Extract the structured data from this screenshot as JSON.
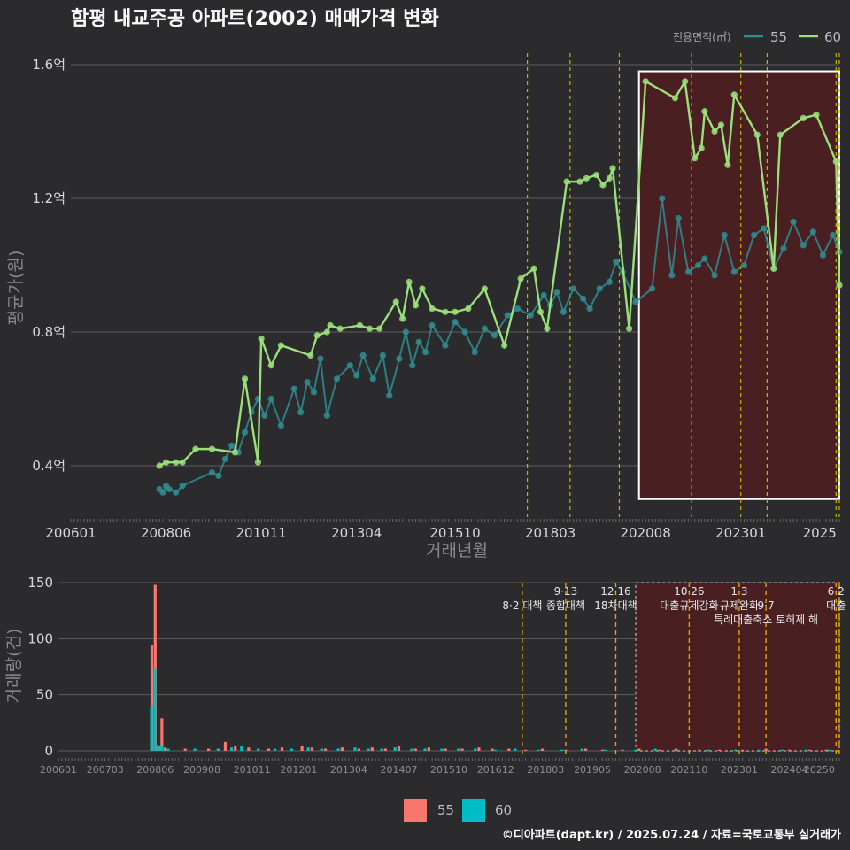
{
  "title": "함평 내교주공 아파트(2002) 매매가격 변화",
  "credit": "©디아파트(dapt.kr) / 2025.07.24 / 자료=국토교통부 실거래가",
  "colors": {
    "background": "#2b2b2d",
    "s55": "#2f8d92",
    "s60": "#9be07a",
    "bar55": "#f8766d",
    "bar60": "#00bfc4",
    "policy_line": "#c8b400",
    "policy_line_bottom": "#e2a400",
    "highlight_fill": "#4a1f22",
    "highlight_border": "#ffffff"
  },
  "top_legend": {
    "title": "전용면적(㎡)",
    "items": [
      {
        "label": "55",
        "color": "#2f8d92"
      },
      {
        "label": "60",
        "color": "#9be07a"
      }
    ]
  },
  "bottom_legend": {
    "items": [
      {
        "label": "55",
        "color": "#f8766d"
      },
      {
        "label": "60",
        "color": "#00bfc4"
      }
    ]
  },
  "chart_data": [
    {
      "type": "line",
      "ylabel": "평균가(원)",
      "xlabel": "거래년월",
      "x_ticks": [
        "200601",
        "200806",
        "201011",
        "201304",
        "201510",
        "201803",
        "202008",
        "202301",
        "2025"
      ],
      "y_ticks": [
        "0.4억",
        "0.8억",
        "1.2억",
        "1.6억"
      ],
      "x_range": [
        "2006-01",
        "2025-07"
      ],
      "ylim": [
        0.3,
        1.6
      ],
      "y_unit": "억",
      "policy_dates": [
        "2017-08",
        "2018-09",
        "2019-12",
        "2021-10",
        "2023-01",
        "2023-09",
        "2025-06",
        "2025-07"
      ],
      "highlight": {
        "x_range": [
          "2020-06",
          "2025-07"
        ],
        "y_range": [
          0.3,
          1.58
        ]
      },
      "series": [
        {
          "name": "60",
          "color": "#9be07a",
          "points": [
            [
              "2008-04",
              0.4
            ],
            [
              "2008-06",
              0.41
            ],
            [
              "2008-09",
              0.41
            ],
            [
              "2008-11",
              0.41
            ],
            [
              "2009-03",
              0.45
            ],
            [
              "2009-08",
              0.45
            ],
            [
              "2010-03",
              0.44
            ],
            [
              "2010-06",
              0.66
            ],
            [
              "2010-10",
              0.41
            ],
            [
              "2010-11",
              0.78
            ],
            [
              "2011-02",
              0.7
            ],
            [
              "2011-05",
              0.76
            ],
            [
              "2012-02",
              0.73
            ],
            [
              "2012-04",
              0.79
            ],
            [
              "2012-07",
              0.8
            ],
            [
              "2012-08",
              0.82
            ],
            [
              "2012-11",
              0.81
            ],
            [
              "2013-05",
              0.82
            ],
            [
              "2013-08",
              0.81
            ],
            [
              "2013-11",
              0.81
            ],
            [
              "2014-04",
              0.89
            ],
            [
              "2014-06",
              0.84
            ],
            [
              "2014-08",
              0.95
            ],
            [
              "2014-10",
              0.88
            ],
            [
              "2014-12",
              0.93
            ],
            [
              "2015-03",
              0.87
            ],
            [
              "2015-07",
              0.86
            ],
            [
              "2015-10",
              0.86
            ],
            [
              "2016-02",
              0.87
            ],
            [
              "2016-07",
              0.93
            ],
            [
              "2017-01",
              0.76
            ],
            [
              "2017-06",
              0.96
            ],
            [
              "2017-10",
              0.99
            ],
            [
              "2017-12",
              0.86
            ],
            [
              "2018-02",
              0.81
            ],
            [
              "2018-08",
              1.25
            ],
            [
              "2018-12",
              1.25
            ],
            [
              "2019-02",
              1.26
            ],
            [
              "2019-05",
              1.27
            ],
            [
              "2019-07",
              1.24
            ],
            [
              "2019-09",
              1.26
            ],
            [
              "2019-10",
              1.29
            ],
            [
              "2020-03",
              0.81
            ],
            [
              "2020-08",
              1.55
            ],
            [
              "2021-05",
              1.5
            ],
            [
              "2021-08",
              1.55
            ],
            [
              "2021-11",
              1.32
            ],
            [
              "2022-01",
              1.35
            ],
            [
              "2022-02",
              1.46
            ],
            [
              "2022-05",
              1.4
            ],
            [
              "2022-07",
              1.42
            ],
            [
              "2022-09",
              1.3
            ],
            [
              "2022-11",
              1.51
            ],
            [
              "2023-06",
              1.39
            ],
            [
              "2023-11",
              0.99
            ],
            [
              "2024-01",
              1.39
            ],
            [
              "2024-08",
              1.44
            ],
            [
              "2024-12",
              1.45
            ],
            [
              "2025-06",
              1.31
            ],
            [
              "2025-07",
              0.94
            ]
          ]
        },
        {
          "name": "55",
          "color": "#2f8d92",
          "points": [
            [
              "2008-04",
              0.33
            ],
            [
              "2008-05",
              0.32
            ],
            [
              "2008-06",
              0.34
            ],
            [
              "2008-07",
              0.33
            ],
            [
              "2008-09",
              0.32
            ],
            [
              "2008-11",
              0.34
            ],
            [
              "2009-08",
              0.38
            ],
            [
              "2009-10",
              0.37
            ],
            [
              "2009-12",
              0.42
            ],
            [
              "2010-02",
              0.46
            ],
            [
              "2010-04",
              0.44
            ],
            [
              "2010-06",
              0.5
            ],
            [
              "2010-08",
              0.56
            ],
            [
              "2010-10",
              0.6
            ],
            [
              "2010-12",
              0.55
            ],
            [
              "2011-02",
              0.6
            ],
            [
              "2011-05",
              0.52
            ],
            [
              "2011-09",
              0.63
            ],
            [
              "2011-11",
              0.56
            ],
            [
              "2012-01",
              0.65
            ],
            [
              "2012-03",
              0.62
            ],
            [
              "2012-05",
              0.72
            ],
            [
              "2012-07",
              0.55
            ],
            [
              "2012-10",
              0.66
            ],
            [
              "2013-02",
              0.7
            ],
            [
              "2013-04",
              0.67
            ],
            [
              "2013-06",
              0.73
            ],
            [
              "2013-09",
              0.66
            ],
            [
              "2013-12",
              0.73
            ],
            [
              "2014-02",
              0.61
            ],
            [
              "2014-05",
              0.72
            ],
            [
              "2014-07",
              0.8
            ],
            [
              "2014-09",
              0.7
            ],
            [
              "2014-11",
              0.77
            ],
            [
              "2015-01",
              0.74
            ],
            [
              "2015-03",
              0.82
            ],
            [
              "2015-07",
              0.76
            ],
            [
              "2015-10",
              0.83
            ],
            [
              "2016-01",
              0.8
            ],
            [
              "2016-04",
              0.74
            ],
            [
              "2016-07",
              0.81
            ],
            [
              "2016-10",
              0.79
            ],
            [
              "2017-02",
              0.85
            ],
            [
              "2017-05",
              0.87
            ],
            [
              "2017-09",
              0.85
            ],
            [
              "2018-01",
              0.91
            ],
            [
              "2018-03",
              0.88
            ],
            [
              "2018-05",
              0.92
            ],
            [
              "2018-07",
              0.86
            ],
            [
              "2018-10",
              0.93
            ],
            [
              "2019-01",
              0.9
            ],
            [
              "2019-03",
              0.87
            ],
            [
              "2019-06",
              0.93
            ],
            [
              "2019-09",
              0.95
            ],
            [
              "2019-11",
              1.01
            ],
            [
              "2020-01",
              0.98
            ],
            [
              "2020-05",
              0.89
            ],
            [
              "2020-10",
              0.93
            ],
            [
              "2021-01",
              1.2
            ],
            [
              "2021-04",
              0.97
            ],
            [
              "2021-06",
              1.14
            ],
            [
              "2021-09",
              0.98
            ],
            [
              "2021-12",
              1.0
            ],
            [
              "2022-02",
              1.02
            ],
            [
              "2022-05",
              0.97
            ],
            [
              "2022-08",
              1.09
            ],
            [
              "2022-11",
              0.98
            ],
            [
              "2023-02",
              1.0
            ],
            [
              "2023-05",
              1.09
            ],
            [
              "2023-08",
              1.11
            ],
            [
              "2023-11",
              0.99
            ],
            [
              "2024-02",
              1.05
            ],
            [
              "2024-05",
              1.13
            ],
            [
              "2024-08",
              1.06
            ],
            [
              "2024-11",
              1.1
            ],
            [
              "2025-02",
              1.03
            ],
            [
              "2025-05",
              1.09
            ],
            [
              "2025-07",
              1.04
            ]
          ]
        }
      ]
    },
    {
      "type": "bar",
      "ylabel": "거래량(건)",
      "x_ticks": [
        "200601",
        "200703",
        "200806",
        "200908",
        "201011",
        "201201",
        "201304",
        "201407",
        "201510",
        "201612",
        "201803",
        "201905",
        "202008",
        "202110",
        "202301",
        "202404",
        "20250"
      ],
      "y_ticks": [
        "0",
        "50",
        "100",
        "150"
      ],
      "ylim": [
        0,
        150
      ],
      "x_range": [
        "2006-01",
        "2025-07"
      ],
      "annotations": [
        {
          "date": "2017-08",
          "text": "8·2 대책",
          "row": 1
        },
        {
          "date": "2018-09",
          "text": "9·13",
          "row": 0
        },
        {
          "date": "2018-09",
          "text": "종합대책",
          "row": 1
        },
        {
          "date": "2019-12",
          "text": "12·16",
          "row": 0
        },
        {
          "date": "2019-12",
          "text": "18차대책",
          "row": 1
        },
        {
          "date": "2021-10",
          "text": "10·26",
          "row": 0
        },
        {
          "date": "2021-10",
          "text": "대출규제강화",
          "row": 1
        },
        {
          "date": "2023-01",
          "text": "1·3",
          "row": 0
        },
        {
          "date": "2023-01",
          "text": "규제완화",
          "row": 1
        },
        {
          "date": "2023-09",
          "text": "9·7",
          "row": 1
        },
        {
          "date": "2023-09",
          "text": "특례대출축소 토허제 해",
          "row": 2
        },
        {
          "date": "2025-06",
          "text": "6·2",
          "row": 0
        },
        {
          "date": "2025-06",
          "text": "대출",
          "row": 1
        }
      ],
      "series": [
        {
          "name": "55",
          "color": "#f8766d",
          "values": [
            [
              "2008-05",
              94
            ],
            [
              "2008-06",
              148
            ],
            [
              "2008-07",
              5
            ],
            [
              "2008-08",
              29
            ],
            [
              "2008-09",
              3
            ],
            [
              "2009-03",
              2
            ],
            [
              "2009-10",
              2
            ],
            [
              "2010-03",
              8
            ],
            [
              "2010-06",
              4
            ],
            [
              "2010-10",
              3
            ],
            [
              "2011-04",
              2
            ],
            [
              "2011-08",
              3
            ],
            [
              "2012-02",
              4
            ],
            [
              "2012-05",
              3
            ],
            [
              "2012-09",
              2
            ],
            [
              "2013-02",
              3
            ],
            [
              "2013-07",
              2
            ],
            [
              "2013-11",
              3
            ],
            [
              "2014-03",
              2
            ],
            [
              "2014-07",
              4
            ],
            [
              "2014-12",
              2
            ],
            [
              "2015-04",
              3
            ],
            [
              "2015-09",
              2
            ],
            [
              "2016-02",
              2
            ],
            [
              "2016-07",
              3
            ],
            [
              "2016-11",
              2
            ],
            [
              "2017-04",
              2
            ],
            [
              "2017-09",
              1
            ],
            [
              "2018-02",
              2
            ],
            [
              "2018-09",
              1
            ],
            [
              "2019-03",
              2
            ],
            [
              "2019-08",
              1
            ],
            [
              "2020-02",
              1
            ],
            [
              "2020-07",
              2
            ],
            [
              "2021-01",
              1
            ],
            [
              "2021-06",
              2
            ],
            [
              "2022-01",
              1
            ],
            [
              "2022-07",
              1
            ],
            [
              "2023-02",
              1
            ],
            [
              "2023-09",
              2
            ],
            [
              "2024-04",
              1
            ],
            [
              "2024-10",
              1
            ],
            [
              "2025-03",
              1
            ]
          ]
        },
        {
          "name": "60",
          "color": "#00bfc4",
          "values": [
            [
              "2008-05",
              40
            ],
            [
              "2008-06",
              73
            ],
            [
              "2008-07",
              5
            ],
            [
              "2008-08",
              4
            ],
            [
              "2008-10",
              2
            ],
            [
              "2009-06",
              2
            ],
            [
              "2010-01",
              2
            ],
            [
              "2010-05",
              3
            ],
            [
              "2010-08",
              4
            ],
            [
              "2011-01",
              2
            ],
            [
              "2011-06",
              2
            ],
            [
              "2011-11",
              2
            ],
            [
              "2012-04",
              3
            ],
            [
              "2012-08",
              2
            ],
            [
              "2013-01",
              2
            ],
            [
              "2013-06",
              3
            ],
            [
              "2013-10",
              2
            ],
            [
              "2014-02",
              2
            ],
            [
              "2014-06",
              3
            ],
            [
              "2014-11",
              2
            ],
            [
              "2015-03",
              2
            ],
            [
              "2015-08",
              2
            ],
            [
              "2016-01",
              2
            ],
            [
              "2016-06",
              2
            ],
            [
              "2016-12",
              1
            ],
            [
              "2017-06",
              2
            ],
            [
              "2018-01",
              1
            ],
            [
              "2018-08",
              1
            ],
            [
              "2019-02",
              2
            ],
            [
              "2019-09",
              1
            ],
            [
              "2020-06",
              1
            ],
            [
              "2020-12",
              2
            ],
            [
              "2021-07",
              1
            ],
            [
              "2022-04",
              1
            ],
            [
              "2022-12",
              1
            ],
            [
              "2023-07",
              1
            ],
            [
              "2024-02",
              1
            ],
            [
              "2024-09",
              1
            ],
            [
              "2025-04",
              1
            ]
          ]
        }
      ]
    }
  ]
}
